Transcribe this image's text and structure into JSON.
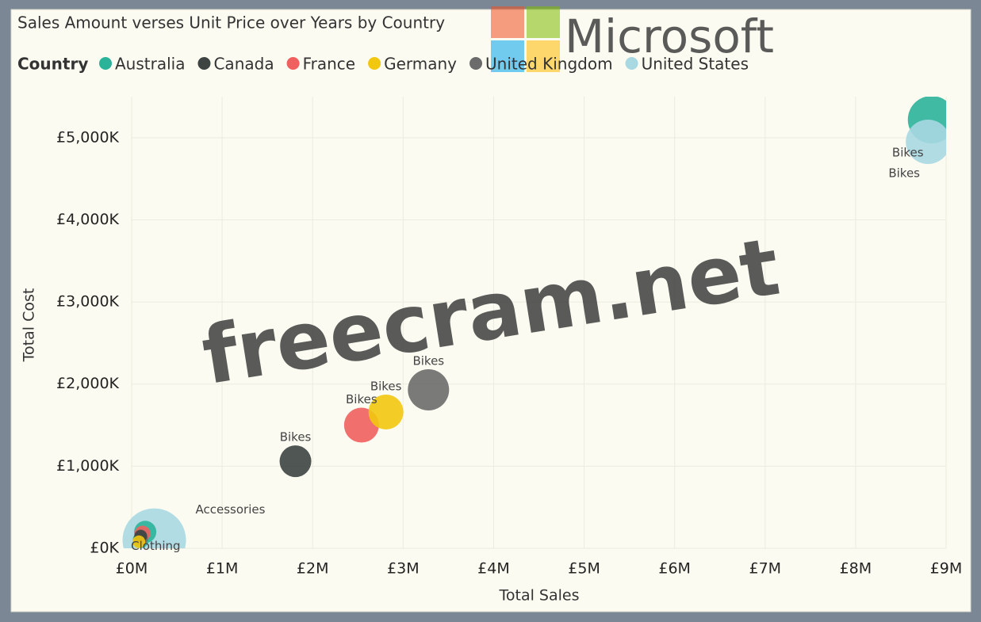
{
  "chart_data": {
    "type": "scatter",
    "title": "Sales Amount verses Unit Price over Years by Country",
    "legend_title": "Country",
    "x_label": "Total Sales",
    "y_label": "Total Cost",
    "xlim": [
      0,
      9
    ],
    "ylim": [
      0,
      5500
    ],
    "xticks": [
      {
        "value": 0,
        "label": "£0M"
      },
      {
        "value": 1,
        "label": "£1M"
      },
      {
        "value": 2,
        "label": "£2M"
      },
      {
        "value": 3,
        "label": "£3M"
      },
      {
        "value": 4,
        "label": "£4M"
      },
      {
        "value": 5,
        "label": "£5M"
      },
      {
        "value": 6,
        "label": "£6M"
      },
      {
        "value": 7,
        "label": "£7M"
      },
      {
        "value": 8,
        "label": "£8M"
      },
      {
        "value": 9,
        "label": "£9M"
      }
    ],
    "yticks": [
      {
        "value": 0,
        "label": "£0K"
      },
      {
        "value": 1000,
        "label": "£1,000K"
      },
      {
        "value": 2000,
        "label": "£2,000K"
      },
      {
        "value": 3000,
        "label": "£3,000K"
      },
      {
        "value": 4000,
        "label": "£4,000K"
      },
      {
        "value": 5000,
        "label": "£5,000K"
      }
    ],
    "grid": true,
    "series": [
      {
        "name": "Australia",
        "color": "#2bb39a",
        "x": [
          8.84,
          0.15,
          0.1
        ],
        "values": [
          5220,
          200,
          100
        ],
        "sizes": [
          30,
          14,
          10
        ],
        "labels": [
          "Bikes",
          null,
          null
        ]
      },
      {
        "name": "Canada",
        "color": "#3d4441",
        "x": [
          1.81,
          0.1
        ],
        "values": [
          1060,
          150
        ],
        "sizes": [
          20,
          8
        ],
        "labels": [
          "Bikes",
          null
        ]
      },
      {
        "name": "France",
        "color": "#f0605e",
        "x": [
          2.54,
          0.12
        ],
        "values": [
          1500,
          180
        ],
        "sizes": [
          22,
          10
        ],
        "labels": [
          "Bikes",
          null
        ]
      },
      {
        "name": "Germany",
        "color": "#f2c80f",
        "x": [
          2.81,
          0.08
        ],
        "values": [
          1660,
          80
        ],
        "sizes": [
          22,
          8
        ],
        "labels": [
          "Bikes",
          "Clothing"
        ]
      },
      {
        "name": "United Kingdom",
        "color": "#6b6b6b",
        "x": [
          3.28,
          0.1
        ],
        "values": [
          1930,
          120
        ],
        "sizes": [
          26,
          9
        ],
        "labels": [
          "Bikes",
          null
        ]
      },
      {
        "name": "United States",
        "color": "#a8d8e2",
        "x": [
          8.8,
          0.25
        ],
        "values": [
          4950,
          100
        ],
        "sizes": [
          28,
          40
        ],
        "labels": [
          "Bikes",
          "Accessories"
        ]
      }
    ]
  },
  "branding": {
    "logo": "Microsoft",
    "watermark": "freecram.net"
  }
}
